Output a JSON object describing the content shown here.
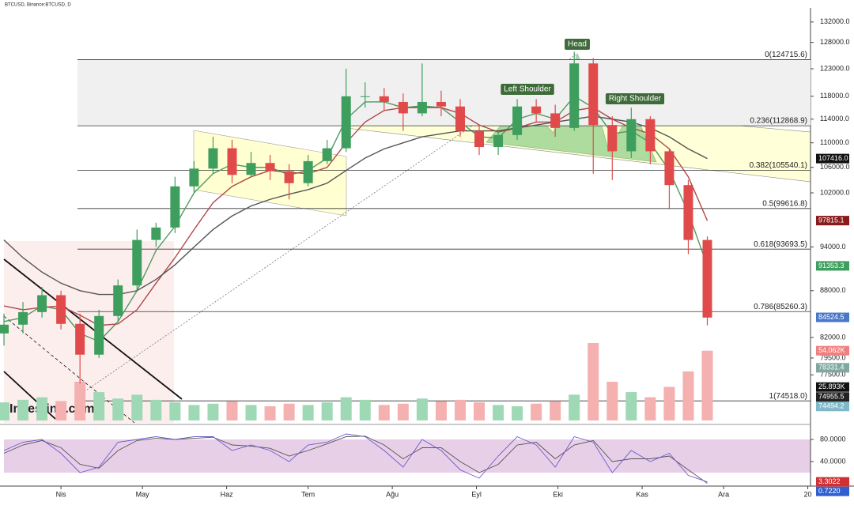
{
  "chart_data": {
    "type": "candlestick",
    "title": "BTCUSD, Binance:BTCUSD, D",
    "watermark": "Investing.com",
    "log_scale": true,
    "up_color": "#3e9e5e",
    "down_color": "#e04a4a",
    "volume_up_color": "#9fd8b4",
    "volume_down_color": "#f5b0b0",
    "xlim": [
      -21,
      276
    ],
    "xticks": [
      {
        "value": 0,
        "label": "Nis"
      },
      {
        "value": 30,
        "label": "May"
      },
      {
        "value": 61,
        "label": "Haz"
      },
      {
        "value": 91,
        "label": "Tem"
      },
      {
        "value": 122,
        "label": "Ağu"
      },
      {
        "value": 153,
        "label": "Eyl"
      },
      {
        "value": 183,
        "label": "Eki"
      },
      {
        "value": 214,
        "label": "Kas"
      },
      {
        "value": 244,
        "label": "Ara"
      },
      {
        "value": 275,
        "label": "20"
      }
    ],
    "ylim": [
      72000,
      135000
    ],
    "yticks": [
      {
        "value": 132000,
        "label": "132000.0"
      },
      {
        "value": 128000,
        "label": "128000.0"
      },
      {
        "value": 123000,
        "label": "123000.0"
      },
      {
        "value": 118000,
        "label": "118000.0"
      },
      {
        "value": 114000,
        "label": "114000.0"
      },
      {
        "value": 110000,
        "label": "110000.0"
      },
      {
        "value": 106000,
        "label": "106000.0"
      },
      {
        "value": 102000,
        "label": "102000.0"
      },
      {
        "value": 94000,
        "label": "94000.0"
      },
      {
        "value": 88000,
        "label": "88000.0"
      },
      {
        "value": 82000,
        "label": "82000.0"
      },
      {
        "value": 79500,
        "label": "79500.0"
      },
      {
        "value": 77500,
        "label": "77500.0"
      }
    ],
    "x": [
      -21,
      -14,
      -7,
      0,
      7,
      14,
      21,
      28,
      35,
      42,
      49,
      56,
      63,
      70,
      77,
      84,
      91,
      98,
      105,
      112,
      119,
      126,
      133,
      140,
      147,
      154,
      161,
      168,
      175,
      182,
      189,
      196,
      203,
      210,
      217,
      224,
      231,
      238
    ],
    "open": [
      82500,
      83600,
      85200,
      87400,
      83700,
      79900,
      84700,
      88700,
      95000,
      96800,
      103000,
      105800,
      109100,
      104800,
      106700,
      105400,
      103500,
      107000,
      109100,
      118000,
      118000,
      117000,
      115000,
      117000,
      116200,
      112000,
      109300,
      111300,
      116200,
      115000,
      112500,
      124000,
      113000,
      108600,
      114000,
      108600,
      103200,
      95000
    ],
    "high": [
      85000,
      86500,
      88500,
      88000,
      85000,
      85500,
      89500,
      96500,
      97500,
      104500,
      107000,
      111000,
      110500,
      108500,
      108000,
      106500,
      108000,
      110500,
      123000,
      120500,
      119500,
      118500,
      124000,
      119000,
      117500,
      113000,
      112000,
      117500,
      117500,
      116500,
      126200,
      125000,
      114500,
      116000,
      114500,
      109000,
      104000,
      95500
    ],
    "low": [
      81000,
      82500,
      84500,
      83000,
      76500,
      79500,
      84000,
      88000,
      94000,
      96000,
      102000,
      105000,
      103500,
      104500,
      104000,
      101000,
      103000,
      106500,
      108500,
      116000,
      115500,
      112000,
      114500,
      114500,
      111000,
      108000,
      108000,
      110500,
      113500,
      111000,
      112000,
      105000,
      104000,
      107500,
      106500,
      99500,
      93000,
      83500
    ],
    "close": [
      83600,
      85200,
      87400,
      83700,
      79900,
      84700,
      88700,
      95000,
      96800,
      103000,
      105800,
      109100,
      104800,
      106700,
      105400,
      103500,
      107000,
      109100,
      118000,
      118000,
      117000,
      115000,
      117000,
      116200,
      112000,
      109300,
      111300,
      116200,
      115000,
      112500,
      124000,
      113000,
      108600,
      114000,
      108600,
      103200,
      95000,
      84500
    ],
    "moving_averages": [
      {
        "color": "#4f9a5f",
        "values": [
          84000,
          84500,
          86000,
          85500,
          82500,
          81500,
          84000,
          88000,
          93500,
          97000,
          102000,
          105000,
          106500,
          106000,
          106000,
          104800,
          105500,
          107500,
          114000,
          117000,
          117000,
          116000,
          116300,
          116000,
          113500,
          111000,
          110800,
          114000,
          115000,
          114000,
          118000,
          116000,
          111500,
          112000,
          110000,
          105500,
          99000,
          91353.3
        ]
      },
      {
        "color": "#b04848",
        "values": [
          86000,
          85500,
          85800,
          86000,
          84800,
          83500,
          83700,
          85500,
          89000,
          92500,
          96500,
          100500,
          103000,
          104500,
          105500,
          105200,
          105000,
          106000,
          110000,
          113500,
          115500,
          116000,
          116000,
          116000,
          115000,
          113000,
          111800,
          112500,
          113500,
          113500,
          115500,
          116000,
          114000,
          112500,
          111500,
          109000,
          104500,
          97815.1
        ]
      },
      {
        "color": "#555555",
        "values": [
          95000,
          92500,
          90500,
          89000,
          88000,
          87500,
          87500,
          88000,
          89500,
          91500,
          94000,
          96500,
          98500,
          100000,
          101000,
          101800,
          102500,
          103500,
          105500,
          107500,
          109000,
          110000,
          111000,
          111500,
          112000,
          112000,
          112000,
          112500,
          113000,
          113500,
          114000,
          114500,
          114000,
          113500,
          112500,
          111000,
          109000,
          107416.0
        ]
      }
    ],
    "volume_ylim": [
      0,
      60000
    ],
    "volume": [
      14000,
      16000,
      18000,
      15000,
      30000,
      22000,
      17000,
      20000,
      16000,
      14000,
      12000,
      13000,
      15000,
      12000,
      11000,
      13000,
      12000,
      14000,
      18000,
      16000,
      12000,
      13000,
      17000,
      15000,
      16000,
      14000,
      12000,
      11000,
      13000,
      15000,
      20000,
      60000,
      30000,
      22000,
      18000,
      26000,
      38000,
      54062
    ],
    "fibonacci": [
      {
        "value": 124715.6,
        "label": "0(124715.6)"
      },
      {
        "value": 112868.9,
        "label": "0.236(112868.9)"
      },
      {
        "value": 105540.1,
        "label": "0.382(105540.1)"
      },
      {
        "value": 99616.8,
        "label": "0.5(99616.8)"
      },
      {
        "value": 93693.5,
        "label": "0.618(93693.5)"
      },
      {
        "value": 85260.3,
        "label": "0.786(85260.3)"
      },
      {
        "value": 74518.0,
        "label": "1(74518.0)"
      }
    ],
    "annotations": [
      "Head",
      "Left Shoulder",
      "Right Shoulder"
    ],
    "stoch_ylim": [
      0,
      100
    ],
    "stoch_yticks": [
      {
        "value": 80,
        "label": "80.0000"
      },
      {
        "value": 40,
        "label": "40.0000"
      }
    ],
    "stoch_band": [
      20,
      80
    ],
    "stoch_k": {
      "color": "#6a5acd",
      "values": [
        60,
        75,
        80,
        55,
        20,
        30,
        75,
        80,
        85,
        80,
        85,
        85,
        60,
        70,
        60,
        40,
        70,
        75,
        90,
        85,
        60,
        30,
        80,
        60,
        25,
        10,
        50,
        85,
        70,
        30,
        85,
        75,
        20,
        60,
        40,
        55,
        15,
        3.3022
      ]
    },
    "stoch_d": {
      "color": "#555555",
      "values": [
        55,
        70,
        78,
        65,
        35,
        28,
        60,
        78,
        82,
        80,
        82,
        84,
        70,
        68,
        64,
        50,
        60,
        72,
        85,
        86,
        70,
        45,
        65,
        65,
        40,
        20,
        35,
        70,
        75,
        45,
        70,
        78,
        40,
        45,
        45,
        50,
        25,
        0.722
      ]
    },
    "badges": [
      {
        "value": 107416.0,
        "label": "107416.0",
        "color": "#111111",
        "axis": "price"
      },
      {
        "value": 97815.1,
        "label": "97815.1",
        "color": "#8b1a1a",
        "axis": "price"
      },
      {
        "value": 91353.3,
        "label": "91353.3",
        "color": "#3e9e5e",
        "axis": "price"
      },
      {
        "value": 84524.5,
        "label": "84524.5",
        "color": "#4a78c8",
        "axis": "price"
      },
      {
        "value": 54062,
        "label": "54.062K",
        "color": "#f08080",
        "axis": "volume"
      },
      {
        "value": 78331.4,
        "label": "78331.4",
        "color": "#7fa8a0",
        "axis": "price"
      },
      {
        "value": 25893,
        "label": "25.893K",
        "color": "#111111",
        "axis": "volume"
      },
      {
        "value": 74955.5,
        "label": "74955.5",
        "color": "#222222",
        "axis": "price"
      },
      {
        "value": 74494.2,
        "label": "74494.2",
        "color": "#7fb8c8",
        "axis": "price"
      },
      {
        "value": 3.3022,
        "label": "3.3022",
        "color": "#d03030",
        "axis": "stoch"
      },
      {
        "value": 0.722,
        "label": "0.7220",
        "color": "#3060d0",
        "axis": "stoch"
      }
    ]
  }
}
